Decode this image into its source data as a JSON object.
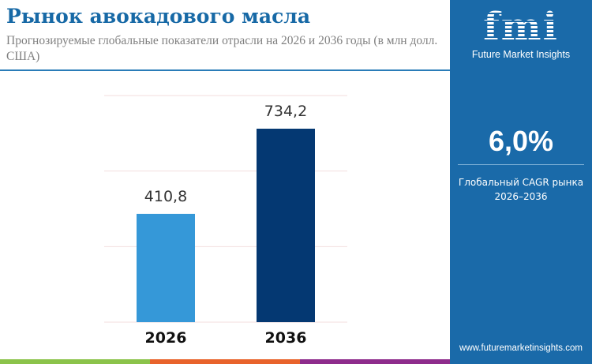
{
  "header": {
    "title": "Рынок авокадового масла",
    "subtitle": "Прогнозируемые глобальные показатели отрасли на 2026 и 2036 годы (в млн долл. США)"
  },
  "panel": {
    "logo_text": "fmi",
    "brand": "Future Market Insights",
    "cagr_value": "6,0%",
    "cagr_label": "Глобальный CAGR рынка",
    "cagr_period": "2026–2036",
    "url": "www.futuremarketinsights.com"
  },
  "colors": {
    "panel": "#1a6aa9",
    "title": "#1769a6",
    "bar_2026": "#3598d8",
    "bar_2036": "#043872",
    "stripes": [
      "#8bc34a",
      "#e8632b",
      "#8e2c8c"
    ]
  },
  "chart_data": {
    "type": "bar",
    "categories": [
      "2026",
      "2036"
    ],
    "values": [
      410.8,
      734.2
    ],
    "labels": [
      "410,8",
      "734,2"
    ],
    "ylim": [
      0,
      860
    ],
    "grid": true,
    "title": "",
    "xlabel": "",
    "ylabel": ""
  }
}
